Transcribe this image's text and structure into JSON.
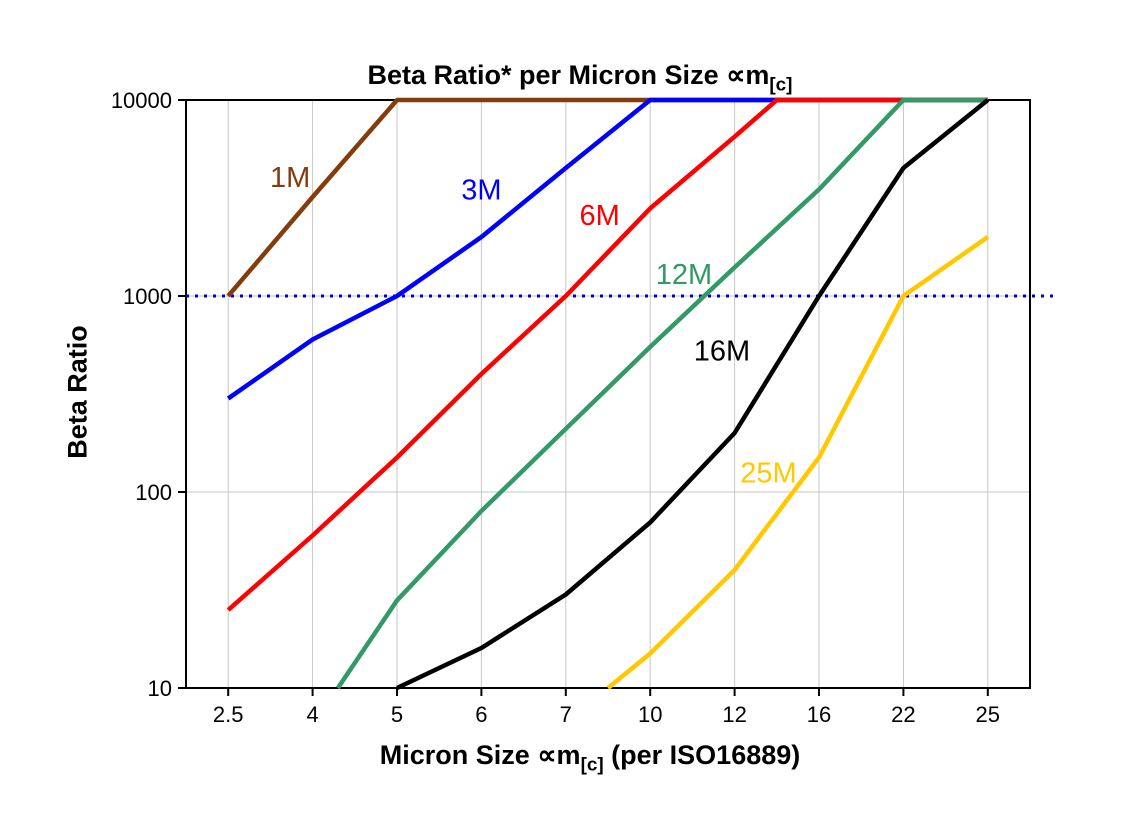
{
  "title": {
    "text": "Beta Ratio* per Micron Size ∝m",
    "sub": "[c]"
  },
  "y_axis": {
    "label": "Beta Ratio",
    "ticks": [
      10,
      100,
      1000,
      10000
    ],
    "tick_labels": [
      "10",
      "100",
      "1000",
      "10000"
    ]
  },
  "x_axis": {
    "label_pre": "Micron Size ∝m",
    "label_sub": "[c]",
    "label_post": " (per ISO16889)",
    "tick_labels": [
      "2.5",
      "4",
      "5",
      "6",
      "7",
      "10",
      "12",
      "16",
      "22",
      "25"
    ]
  },
  "chart_data": {
    "type": "line",
    "x_scale": "categorical",
    "y_scale": "log",
    "ylim": [
      10,
      10000
    ],
    "categories": [
      2.5,
      4,
      5,
      6,
      7,
      10,
      12,
      16,
      22,
      25
    ],
    "grid": true,
    "grid_color": "#c6c6c6",
    "legend_position": "inline-labels",
    "series": [
      {
        "name": "1M",
        "color": "#843C0C",
        "points": [
          [
            2.5,
            1000
          ],
          [
            4,
            3200
          ],
          [
            5,
            10000
          ],
          [
            25,
            10000
          ]
        ],
        "label_at": [
          3.6,
          3600
        ]
      },
      {
        "name": "3M",
        "color": "#0000FF",
        "points": [
          [
            2.5,
            300
          ],
          [
            4,
            600
          ],
          [
            5,
            1000
          ],
          [
            6,
            2000
          ],
          [
            7,
            4500
          ],
          [
            10,
            10000
          ],
          [
            25,
            10000
          ]
        ],
        "label_at": [
          6.0,
          3100
        ]
      },
      {
        "name": "6M",
        "color": "#FF0000",
        "points": [
          [
            2.5,
            25
          ],
          [
            4,
            60
          ],
          [
            5,
            150
          ],
          [
            6,
            400
          ],
          [
            7,
            1000
          ],
          [
            10,
            2800
          ],
          [
            12,
            6500
          ],
          [
            14,
            10000
          ],
          [
            25,
            10000
          ]
        ],
        "label_at": [
          8.2,
          2300
        ]
      },
      {
        "name": "12M",
        "color": "#339966",
        "points": [
          [
            4.3,
            10
          ],
          [
            5,
            28
          ],
          [
            6,
            80
          ],
          [
            7,
            210
          ],
          [
            10,
            550
          ],
          [
            12,
            1400
          ],
          [
            16,
            3500
          ],
          [
            22,
            10000
          ],
          [
            25,
            10000
          ]
        ],
        "label_at": [
          10.8,
          1150
        ]
      },
      {
        "name": "16M",
        "color": "#000000",
        "points": [
          [
            5,
            10
          ],
          [
            6,
            16
          ],
          [
            7,
            30
          ],
          [
            10,
            70
          ],
          [
            12,
            200
          ],
          [
            16,
            1000
          ],
          [
            22,
            4500
          ],
          [
            25,
            10000
          ]
        ],
        "label_at": [
          11.7,
          470
        ]
      },
      {
        "name": "25M",
        "color": "#FFC800",
        "points": [
          [
            8.5,
            10
          ],
          [
            10,
            15
          ],
          [
            12,
            40
          ],
          [
            16,
            150
          ],
          [
            22,
            1000
          ],
          [
            25,
            2000
          ]
        ],
        "label_at": [
          13.6,
          112
        ]
      }
    ],
    "annotations": [
      {
        "type": "hline",
        "y": 1000,
        "color": "#0000CC",
        "style": "dotted"
      }
    ]
  }
}
